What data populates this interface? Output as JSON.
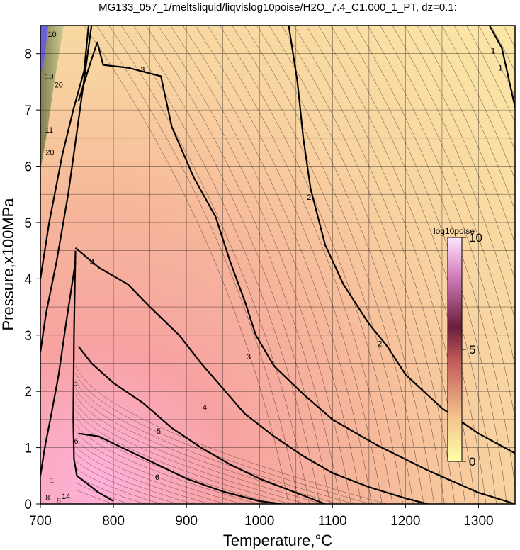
{
  "chart_data": {
    "type": "heatmap",
    "title": "MG133_057_1/meltsliquid/liqvislog10poise/H2O_7.4_C1.000_1_PT, dz=0.1:",
    "xlabel": "Temperature,°C",
    "ylabel": "Pressure,x100MPa",
    "xlim": [
      700,
      1350
    ],
    "ylim": [
      0,
      8.5
    ],
    "x_ticks": [
      "700",
      "800",
      "900",
      "1000",
      "1100",
      "1200",
      "1300"
    ],
    "y_ticks": [
      "0",
      "1",
      "2",
      "3",
      "4",
      "5",
      "6",
      "7",
      "8"
    ],
    "grid": true,
    "contour_interval": 0.1,
    "colorbar": {
      "title": "log10poise",
      "range": [
        0,
        10
      ],
      "ticks": [
        "0",
        "5",
        "10"
      ],
      "colors": [
        "#ffffa8",
        "#f4c28c",
        "#c25a5a",
        "#6a1e3c",
        "#d07ab8",
        "#ffe6ff"
      ]
    },
    "major_contours": [
      {
        "label": "1",
        "points": [
          [
            1315,
            8.5
          ],
          [
            1332,
            8.1
          ],
          [
            1350,
            7.05
          ]
        ]
      },
      {
        "label": "2",
        "points": [
          [
            1040,
            8.5
          ],
          [
            1052,
            7.5
          ],
          [
            1060,
            6.5
          ],
          [
            1070,
            5.6
          ],
          [
            1090,
            4.6
          ],
          [
            1115,
            3.9
          ],
          [
            1150,
            3.2
          ],
          [
            1175,
            2.8
          ],
          [
            1200,
            2.3
          ],
          [
            1250,
            1.7
          ],
          [
            1300,
            1.25
          ],
          [
            1350,
            0.9
          ]
        ]
      },
      {
        "label": "3",
        "points": [
          [
            752,
            7.15
          ],
          [
            770,
            7.9
          ],
          [
            778,
            8.2
          ],
          [
            786,
            7.8
          ],
          [
            820,
            7.75
          ],
          [
            865,
            7.6
          ],
          [
            880,
            6.7
          ],
          [
            910,
            5.8
          ],
          [
            940,
            5.1
          ],
          [
            960,
            4.3
          ],
          [
            980,
            3.6
          ],
          [
            995,
            3.0
          ],
          [
            1020,
            2.45
          ],
          [
            1060,
            1.95
          ],
          [
            1100,
            1.5
          ],
          [
            1160,
            1.05
          ],
          [
            1230,
            0.6
          ],
          [
            1300,
            0.2
          ],
          [
            1350,
            0.0
          ]
        ]
      },
      {
        "label": "4",
        "points": [
          [
            748,
            4.55
          ],
          [
            780,
            4.2
          ],
          [
            820,
            3.9
          ],
          [
            850,
            3.5
          ],
          [
            890,
            3.0
          ],
          [
            920,
            2.5
          ],
          [
            950,
            2.05
          ],
          [
            980,
            1.6
          ],
          [
            1020,
            1.2
          ],
          [
            1060,
            0.85
          ],
          [
            1100,
            0.55
          ],
          [
            1150,
            0.3
          ],
          [
            1200,
            0.1
          ],
          [
            1230,
            0.0
          ]
        ]
      },
      {
        "label": "5",
        "points": [
          [
            752,
            2.8
          ],
          [
            770,
            2.5
          ],
          [
            800,
            2.15
          ],
          [
            840,
            1.8
          ],
          [
            880,
            1.35
          ],
          [
            920,
            1.0
          ],
          [
            960,
            0.7
          ],
          [
            1000,
            0.45
          ],
          [
            1050,
            0.2
          ],
          [
            1090,
            0.0
          ]
        ]
      },
      {
        "label": "6",
        "points": [
          [
            752,
            1.25
          ],
          [
            780,
            1.2
          ],
          [
            820,
            0.95
          ],
          [
            860,
            0.7
          ],
          [
            900,
            0.45
          ],
          [
            950,
            0.22
          ],
          [
            1000,
            0.05
          ],
          [
            1030,
            0.0
          ]
        ]
      },
      {
        "label": "",
        "points": [
          [
            700,
            4.0
          ],
          [
            712,
            5.0
          ],
          [
            730,
            6.2
          ],
          [
            745,
            7.0
          ],
          [
            760,
            7.7
          ],
          [
            766,
            8.5
          ]
        ]
      },
      {
        "label": "",
        "points": [
          [
            700,
            2.7
          ],
          [
            708,
            3.4
          ],
          [
            722,
            4.3
          ],
          [
            738,
            5.5
          ],
          [
            752,
            6.8
          ],
          [
            770,
            8.5
          ]
        ]
      },
      {
        "label": "",
        "points": [
          [
            700,
            0.5
          ],
          [
            706,
            1.0
          ],
          [
            715,
            1.6
          ],
          [
            725,
            2.3
          ],
          [
            735,
            3.2
          ],
          [
            748,
            4.3
          ]
        ]
      },
      {
        "label": "",
        "points": [
          [
            748,
            4.5
          ],
          [
            746,
            3.0
          ],
          [
            745,
            1.5
          ],
          [
            746,
            0.8
          ],
          [
            750,
            0.5
          ],
          [
            780,
            0.2
          ],
          [
            800,
            0.05
          ]
        ]
      }
    ],
    "contour_labels": [
      {
        "text": "1",
        "x": 1320,
        "y": 8.05
      },
      {
        "text": "1",
        "x": 1330,
        "y": 7.75
      },
      {
        "text": "2",
        "x": 1068,
        "y": 5.45
      },
      {
        "text": "2",
        "x": 1165,
        "y": 2.85
      },
      {
        "text": "3",
        "x": 840,
        "y": 7.72
      },
      {
        "text": "3",
        "x": 985,
        "y": 2.62
      },
      {
        "text": "4",
        "x": 771,
        "y": 4.3
      },
      {
        "text": "4",
        "x": 925,
        "y": 1.72
      },
      {
        "text": "5",
        "x": 748,
        "y": 2.15
      },
      {
        "text": "5",
        "x": 862,
        "y": 1.3
      },
      {
        "text": "6",
        "x": 749,
        "y": 1.12
      },
      {
        "text": "6",
        "x": 860,
        "y": 0.48
      },
      {
        "text": "10",
        "x": 716,
        "y": 8.35
      },
      {
        "text": "10",
        "x": 712,
        "y": 7.6
      },
      {
        "text": "20",
        "x": 725,
        "y": 7.45
      },
      {
        "text": "11",
        "x": 712,
        "y": 6.65
      },
      {
        "text": "20",
        "x": 713,
        "y": 6.25
      },
      {
        "text": "1",
        "x": 716,
        "y": 0.42
      },
      {
        "text": "8",
        "x": 710,
        "y": 0.12
      },
      {
        "text": "8",
        "x": 725,
        "y": 0.06
      },
      {
        "text": "14",
        "x": 735,
        "y": 0.14
      }
    ]
  }
}
